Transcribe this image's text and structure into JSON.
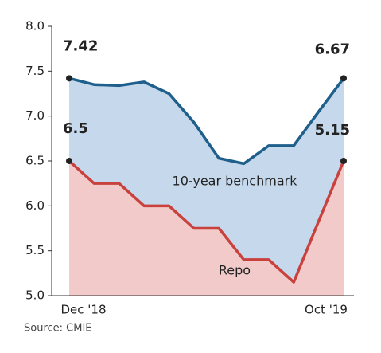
{
  "chart_data": {
    "type": "line",
    "categories": [
      "Dec '18",
      null,
      null,
      null,
      null,
      null,
      null,
      null,
      null,
      null,
      null,
      "Oct '19"
    ],
    "series": [
      {
        "name": "10-year benchmark",
        "color": "#1f5f8b",
        "fill": "#c6d9ec",
        "values": [
          7.42,
          7.35,
          7.34,
          7.38,
          7.25,
          6.93,
          6.53,
          6.47,
          6.67,
          6.67,
          7.05,
          7.42
        ]
      },
      {
        "name": "Repo",
        "color": "#c8413d",
        "fill": "#f2caca",
        "values": [
          6.5,
          6.25,
          6.25,
          6.0,
          6.0,
          5.75,
          5.75,
          5.4,
          5.4,
          5.15,
          5.83,
          6.5
        ]
      }
    ],
    "annotations": [
      "7.42",
      "6.5",
      "6.67",
      "5.15"
    ],
    "source": "Source: CMIE",
    "ylim": [
      5.0,
      8.0
    ],
    "yticks": [
      {
        "value": 5.0,
        "label": "5.0"
      },
      5.5,
      {
        "value": 6.0,
        "label": "6.0"
      },
      6.5,
      {
        "value": 7.0,
        "label": "7.0"
      },
      7.5,
      {
        "value": 8.0,
        "label": "8.0"
      }
    ]
  }
}
